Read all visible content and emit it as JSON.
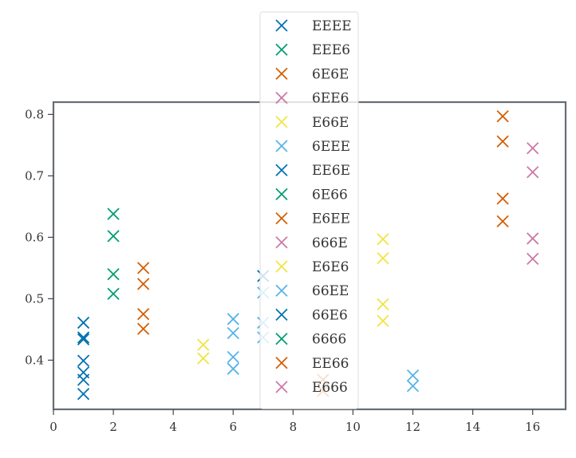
{
  "chart_data": {
    "type": "scatter",
    "title": "",
    "xlabel": "",
    "ylabel": "",
    "xlim": [
      0,
      17.1
    ],
    "ylim": [
      0.32,
      0.82
    ],
    "xticks": [
      0,
      2,
      4,
      6,
      8,
      10,
      12,
      14,
      16
    ],
    "yticks": [
      0.4,
      0.5,
      0.6,
      0.7,
      0.8
    ],
    "marker": "x",
    "grid": false,
    "legend_position": "upper-center",
    "series": [
      {
        "name": "EEEE",
        "color": "#0072b2",
        "x": [
          1,
          1,
          1,
          1
        ],
        "y": [
          0.461,
          0.437,
          0.399,
          0.345
        ]
      },
      {
        "name": "EEE6",
        "color": "#009e73",
        "x": [
          2,
          2,
          2,
          2
        ],
        "y": [
          0.638,
          0.602,
          0.54,
          0.508
        ]
      },
      {
        "name": "6E6E",
        "color": "#d55e00",
        "x": [
          3,
          3,
          3,
          3
        ],
        "y": [
          0.55,
          0.524,
          0.475,
          0.451
        ]
      },
      {
        "name": "6EE6",
        "color": "#cc79a7",
        "x": [],
        "y": []
      },
      {
        "name": "E66E",
        "color": "#f0e442",
        "x": [
          5,
          5
        ],
        "y": [
          0.425,
          0.403
        ]
      },
      {
        "name": "6EEE",
        "color": "#56b4e9",
        "x": [
          6,
          6,
          6,
          6
        ],
        "y": [
          0.467,
          0.444,
          0.405,
          0.386
        ]
      },
      {
        "name": "EE6E",
        "color": "#0072b2",
        "x": [
          1,
          1,
          7
        ],
        "y": [
          0.434,
          0.38,
          0.537
        ]
      },
      {
        "name": "6E66",
        "color": "#009e73",
        "x": [],
        "y": []
      },
      {
        "name": "E6EE",
        "color": "#d55e00",
        "x": [
          9,
          9
        ],
        "y": [
          0.368,
          0.35
        ]
      },
      {
        "name": "666E",
        "color": "#cc79a7",
        "x": [
          16,
          16,
          16,
          16
        ],
        "y": [
          0.745,
          0.706,
          0.598,
          0.565
        ]
      },
      {
        "name": "E6E6",
        "color": "#f0e442",
        "x": [
          11,
          11,
          11,
          11
        ],
        "y": [
          0.597,
          0.566,
          0.491,
          0.464
        ]
      },
      {
        "name": "66EE",
        "color": "#56b4e9",
        "x": [
          12,
          12,
          7,
          7,
          7
        ],
        "y": [
          0.375,
          0.358,
          0.51,
          0.461,
          0.437
        ]
      },
      {
        "name": "66E6",
        "color": "#0072b2",
        "x": [
          1
        ],
        "y": [
          0.368
        ]
      },
      {
        "name": "6666",
        "color": "#009e73",
        "x": [],
        "y": []
      },
      {
        "name": "EE66",
        "color": "#d55e00",
        "x": [
          15,
          15,
          15,
          15
        ],
        "y": [
          0.797,
          0.756,
          0.663,
          0.626
        ]
      },
      {
        "name": "E666",
        "color": "#cc79a7",
        "x": [],
        "y": []
      }
    ]
  }
}
